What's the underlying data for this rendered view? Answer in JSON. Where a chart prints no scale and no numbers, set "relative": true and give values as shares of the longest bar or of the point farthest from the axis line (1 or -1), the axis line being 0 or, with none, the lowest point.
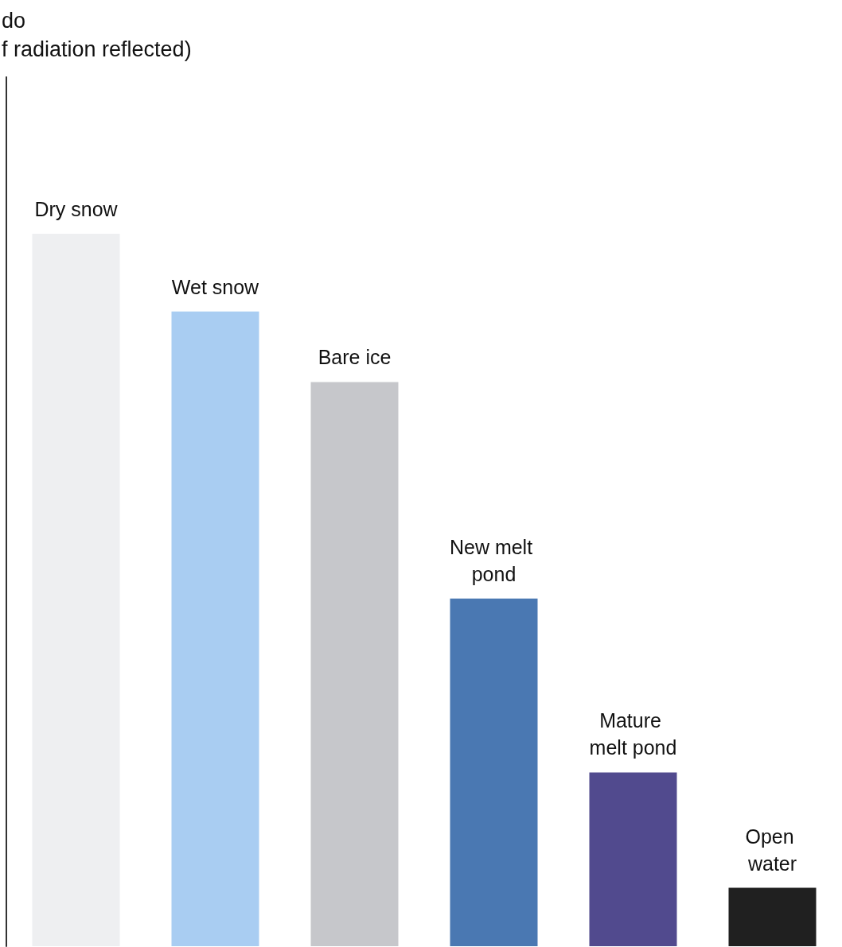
{
  "chart_data": {
    "type": "bar",
    "annotations": [
      "do\nf radiation reflected)"
    ],
    "relative": true,
    "categories": [
      "Dry snow",
      "Wet snow",
      "Bare ice",
      "New melt pond",
      "Mature melt pond",
      "Open water"
    ],
    "values": [
      1,
      0.891,
      0.792,
      0.488,
      0.244,
      0.082
    ],
    "colors": [
      "#eeeff1",
      "#a9cdf2",
      "#c6c7cb",
      "#4a78b2",
      "#514a8e",
      "#202020"
    ],
    "grid": false
  }
}
